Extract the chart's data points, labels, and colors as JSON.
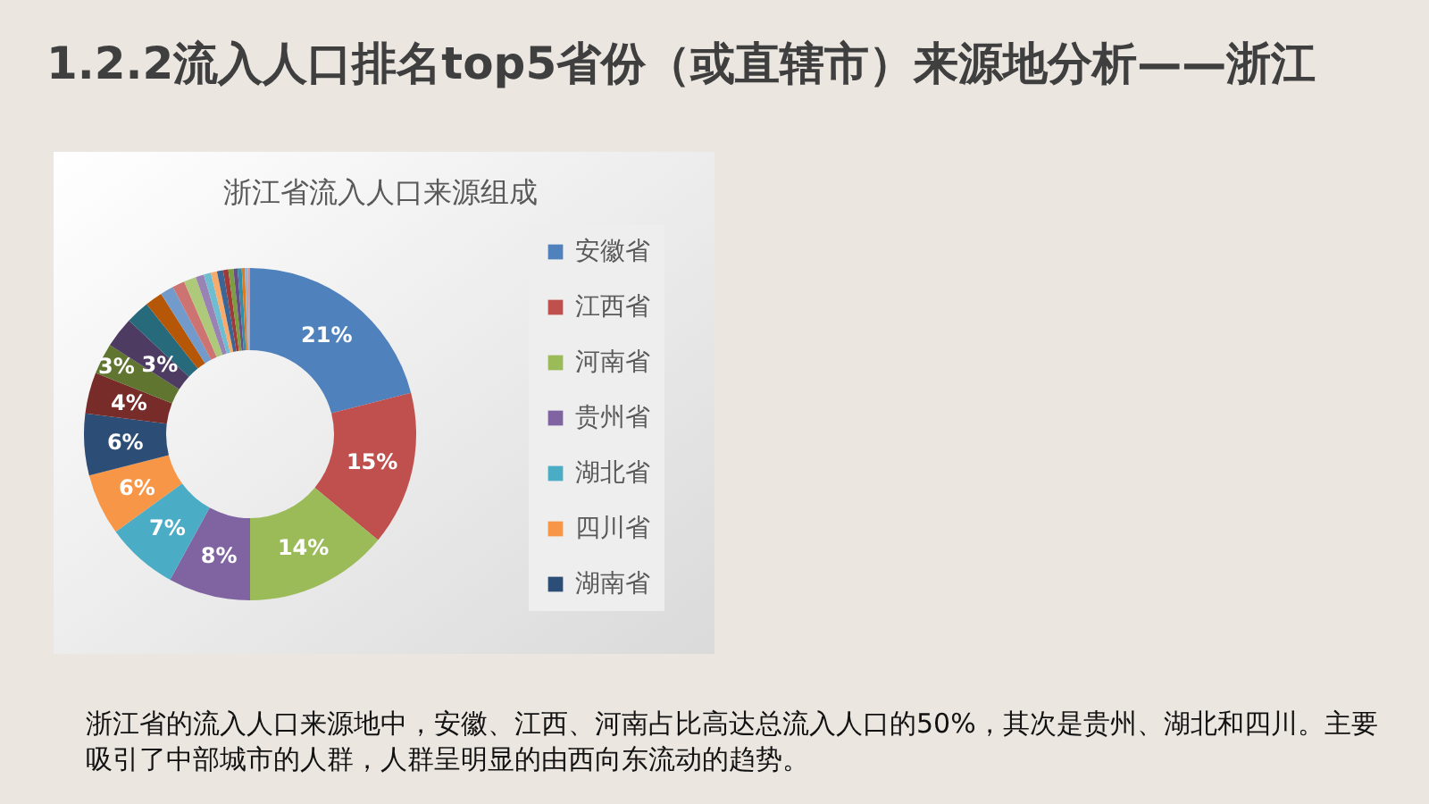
{
  "chart_data": {
    "type": "donut",
    "title": "1.2.2流入人口排名top5省份（或直辖市）来源地分析——浙江",
    "subtitle": "浙江省流入人口来源组成",
    "categories": [
      "安徽省",
      "江西省",
      "河南省",
      "贵州省",
      "湖北省",
      "四川省",
      "湖南省",
      null,
      null,
      null,
      null,
      null,
      null,
      null,
      null,
      null,
      null,
      null,
      null,
      null,
      null,
      null,
      null,
      null,
      null,
      null
    ],
    "values": [
      21,
      15,
      14,
      8,
      7,
      6,
      6,
      4,
      3,
      3,
      2.3,
      1.7,
      1.3,
      1.2,
      1.2,
      0.8,
      0.7,
      0.6,
      0.6,
      0.5,
      0.5,
      0.4,
      0.4,
      0.3,
      0.3,
      0.2
    ],
    "colors": [
      "#4f81bd",
      "#c0504d",
      "#9bbb59",
      "#8064a2",
      "#4bacc6",
      "#f79646",
      "#2c4d75",
      "#772c2a",
      "#5f7530",
      "#4d3b62",
      "#276a7c",
      "#b65708",
      "#729aca",
      "#cd7371",
      "#afc97a",
      "#9983b5",
      "#6fbdd1",
      "#f9ab6b",
      "#3a6595",
      "#9e3a38",
      "#7e9d40",
      "#664f87",
      "#358ea6",
      "#e07a1e",
      "#95b3d7",
      "#d99694"
    ],
    "value_labels": [
      "21%",
      "15%",
      "14%",
      "8%",
      "7%",
      "6%",
      "6%",
      "4%",
      "3%",
      "3%",
      null,
      null,
      null,
      null,
      null,
      null,
      null,
      null,
      null,
      null,
      null,
      null,
      null,
      null,
      null,
      null
    ],
    "legend": "right",
    "annotations": [
      "浙江省的流入人口来源地中，安徽、江西、河南占比高达总流入人口的50%，其次是贵州、湖北和四川。主要吸引了中部城市的人群，人群呈明显的由西向东流动的趋势。"
    ]
  }
}
